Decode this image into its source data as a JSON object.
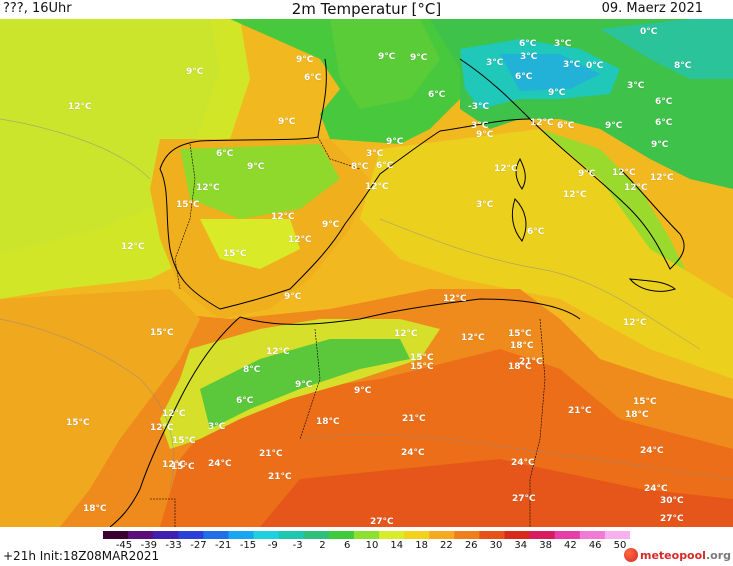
{
  "header": {
    "left": "???, 16Uhr",
    "title": "2m Temperatur [°C]",
    "date": "09. Maerz 2021"
  },
  "footer": {
    "run": "+21h Init:18Z08MAR2021",
    "logo_brand": "meteo",
    "logo_brand2": "pool",
    "logo_tld": ".org"
  },
  "scale": {
    "ticks": [
      "-45",
      "-39",
      "-33",
      "-27",
      "-21",
      "-15",
      "-9",
      "-3",
      "2",
      "6",
      "10",
      "14",
      "18",
      "22",
      "26",
      "30",
      "34",
      "38",
      "42",
      "46",
      "50"
    ],
    "colors": [
      "#3a0030",
      "#5a0f7a",
      "#4020b0",
      "#2a40d8",
      "#1f70e8",
      "#19a6f0",
      "#1fd0e0",
      "#1ec8b0",
      "#2ec07a",
      "#3fcc3c",
      "#8ee030",
      "#d8ec2a",
      "#f5d21a",
      "#f5a820",
      "#ef7e1c",
      "#e65318",
      "#d82a1a",
      "#d81a60",
      "#e63ea8",
      "#f07ad6",
      "#f8b0ee"
    ]
  },
  "labels": [
    {
      "t": "9°C"
    },
    {
      "t": "12°C"
    },
    {
      "t": "9°C"
    },
    {
      "t": "6°C"
    },
    {
      "t": "9°C"
    },
    {
      "t": "9°C"
    },
    {
      "t": "9°C"
    },
    {
      "t": "6°C"
    },
    {
      "t": "6°C"
    },
    {
      "t": "3°C"
    },
    {
      "t": "0°C"
    },
    {
      "t": "3°C"
    },
    {
      "t": "3°C"
    },
    {
      "t": "6°C"
    },
    {
      "t": "3°C"
    },
    {
      "t": "0°C"
    },
    {
      "t": "8°C"
    },
    {
      "t": "3°C"
    },
    {
      "t": "6°C"
    },
    {
      "t": "-3°C"
    },
    {
      "t": "9°C"
    },
    {
      "t": "3°C"
    },
    {
      "t": "9°C"
    },
    {
      "t": "12°C"
    },
    {
      "t": "6°C"
    },
    {
      "t": "9°C"
    },
    {
      "t": "6°C"
    },
    {
      "t": "9°C"
    },
    {
      "t": "6°C"
    },
    {
      "t": "9°C"
    },
    {
      "t": "9°C"
    },
    {
      "t": "3°C"
    },
    {
      "t": "8°C"
    },
    {
      "t": "6°C"
    },
    {
      "t": "12°C"
    },
    {
      "t": "12°C"
    },
    {
      "t": "12°C"
    },
    {
      "t": "12°C"
    },
    {
      "t": "15°C"
    },
    {
      "t": "12°C"
    },
    {
      "t": "9°C"
    },
    {
      "t": "12°C"
    },
    {
      "t": "12°C"
    },
    {
      "t": "12°C"
    },
    {
      "t": "9°C"
    },
    {
      "t": "3°C"
    },
    {
      "t": "6°C"
    },
    {
      "t": "12°C"
    },
    {
      "t": "12°C"
    },
    {
      "t": "15°C"
    },
    {
      "t": "9°C"
    },
    {
      "t": "12°C"
    },
    {
      "t": "15°C"
    },
    {
      "t": "12°C"
    },
    {
      "t": "12°C"
    },
    {
      "t": "12°C"
    },
    {
      "t": "12°C"
    },
    {
      "t": "15°C"
    },
    {
      "t": "18°C"
    },
    {
      "t": "15°C"
    },
    {
      "t": "15°C"
    },
    {
      "t": "18°C"
    },
    {
      "t": "21°C"
    },
    {
      "t": "8°C"
    },
    {
      "t": "9°C"
    },
    {
      "t": "9°C"
    },
    {
      "t": "6°C"
    },
    {
      "t": "15°C"
    },
    {
      "t": "12°C"
    },
    {
      "t": "15°C"
    },
    {
      "t": "12°C"
    },
    {
      "t": "18°C"
    },
    {
      "t": "21°C"
    },
    {
      "t": "21°C"
    },
    {
      "t": "18°C"
    },
    {
      "t": "21°C"
    },
    {
      "t": "3°C"
    },
    {
      "t": "15°C"
    },
    {
      "t": "15°C"
    },
    {
      "t": "12°C"
    },
    {
      "t": "24°C"
    },
    {
      "t": "21°C"
    },
    {
      "t": "24°C"
    },
    {
      "t": "24°C"
    },
    {
      "t": "24°C"
    },
    {
      "t": "24°C"
    },
    {
      "t": "27°C"
    },
    {
      "t": "27°C"
    },
    {
      "t": "18°C"
    },
    {
      "t": "27°C"
    },
    {
      "t": "30°C"
    }
  ]
}
